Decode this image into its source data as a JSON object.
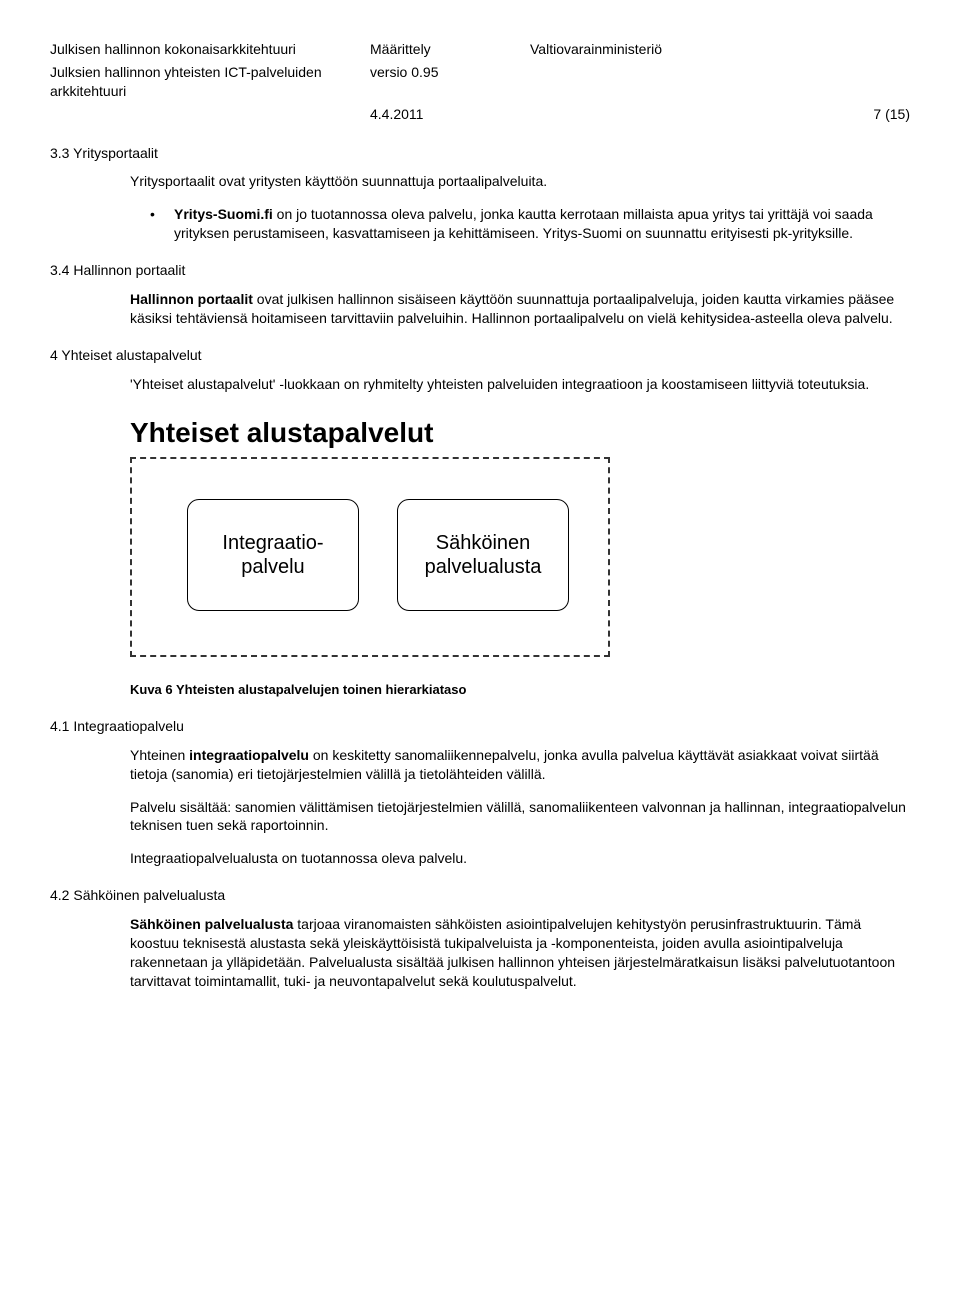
{
  "header": {
    "title1": "Julkisen hallinnon kokonaisarkkitehtuuri",
    "title2": "Julksien hallinnon yhteisten ICT-palveluiden arkkitehtuuri",
    "doc_type": "Määrittely",
    "version": "versio 0.95",
    "org": "Valtiovarainministeriö",
    "date": "4.4.2011",
    "page": "7 (15)"
  },
  "s33": {
    "heading": "3.3 Yritysportaalit",
    "p1": "Yritysportaalit ovat yritysten käyttöön suunnattuja portaalipalveluita.",
    "bullet_bold": "Yritys-Suomi.fi",
    "bullet_rest": " on jo tuotannossa oleva palvelu, jonka kautta kerrotaan millaista apua yritys tai yrittäjä voi saada yrityksen perustamiseen, kasvattamiseen ja kehittämiseen. Yritys-Suomi on suunnattu erityisesti pk-yrityksille."
  },
  "s34": {
    "heading": "3.4 Hallinnon portaalit",
    "p1_bold": "Hallinnon portaalit",
    "p1_rest": " ovat julkisen hallinnon sisäiseen käyttöön suunnattuja portaalipalveluja, joiden kautta virkamies pääsee käsiksi tehtäviensä hoitamiseen tarvittaviin palveluihin. Hallinnon portaalipalvelu on vielä kehitysidea-asteella oleva palvelu."
  },
  "s4": {
    "heading": "4 Yhteiset alustapalvelut",
    "p1": "'Yhteiset alustapalvelut' -luokkaan on ryhmitelty yhteisten palveluiden integraatioon ja koostamiseen liittyviä toteutuksia."
  },
  "diagram": {
    "title": "Yhteiset alustapalvelut",
    "box1": "Integraatio-\npalvelu",
    "box2": "Sähköinen\npalvelualusta",
    "caption": "Kuva 6 Yhteisten alustapalvelujen toinen hierarkiataso",
    "colors": {
      "border": "#333333",
      "box_border": "#000000",
      "background": "#ffffff"
    }
  },
  "s41": {
    "heading": "4.1 Integraatiopalvelu",
    "p1a": "Yhteinen ",
    "p1_bold": "integraatiopalvelu",
    "p1b": " on keskitetty sanomaliikennepalvelu, jonka avulla palvelua käyttävät asiakkaat voivat siirtää tietoja (sanomia) eri tietojärjestelmien välillä ja tietolähteiden välillä.",
    "p2": "Palvelu sisältää: sanomien välittämisen tietojärjestelmien välillä, sanomaliikenteen valvonnan ja hallinnan, integraatiopalvelun teknisen tuen sekä raportoinnin.",
    "p3": "Integraatiopalvelualusta on tuotannossa oleva palvelu."
  },
  "s42": {
    "heading": "4.2 Sähköinen palvelualusta",
    "p1_bold": "Sähköinen palvelualusta",
    "p1_rest": " tarjoaa viranomaisten sähköisten asiointipalvelujen kehitystyön perusinfrastruktuurin. Tämä koostuu teknisestä alustasta sekä yleiskäyttöisistä tukipalveluista ja -komponenteista, joiden avulla asiointipalveluja rakennetaan ja ylläpidetään. Palvelualusta sisältää julkisen hallinnon yhteisen järjestelmäratkaisun lisäksi palvelutuotantoon tarvittavat toimintamallit, tuki- ja neuvontapalvelut sekä koulutuspalvelut."
  }
}
